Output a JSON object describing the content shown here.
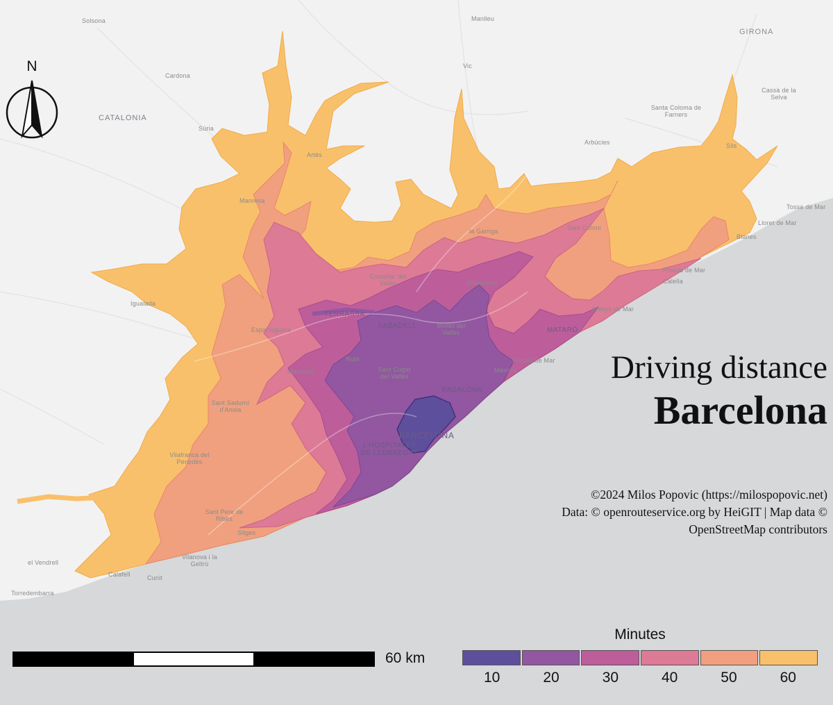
{
  "title": {
    "line1": "Driving distance",
    "line2": "Barcelona"
  },
  "credits": {
    "line1": "©2024 Milos Popovic (https://milospopovic.net)",
    "line2": "Data:  © openrouteservice.org by HeiGIT | Map data ©",
    "line3": "OpenStreetMap contributors"
  },
  "north_arrow": {
    "label": "N",
    "icon": "north-arrow-icon"
  },
  "scale_bar": {
    "label": "60 km"
  },
  "legend": {
    "title": "Minutes",
    "items": [
      {
        "label": "10",
        "color": "#5e4f9c"
      },
      {
        "label": "20",
        "color": "#9257a0"
      },
      {
        "label": "30",
        "color": "#bd5e9b"
      },
      {
        "label": "40",
        "color": "#dd7a95"
      },
      {
        "label": "50",
        "color": "#f0a07e"
      },
      {
        "label": "60",
        "color": "#f9c06c"
      }
    ]
  },
  "colors": {
    "land": "#f2f2f2",
    "sea": "#d6d8da",
    "isochrone_10": "#5e4f9c",
    "isochrone_20": "#9257a0",
    "isochrone_30": "#bd5e9b",
    "isochrone_40": "#dd7a95",
    "isochrone_50": "#f0a07e",
    "isochrone_60": "#f9c06c"
  },
  "places": [
    "Solsona",
    "Manlleu",
    "GIRONA",
    "Cardona",
    "Vic",
    "CATALONIA",
    "Cassà de la Selva",
    "Súria",
    "Santa Coloma de Farners",
    "Artés",
    "Arbúcies",
    "Sils",
    "Manresa",
    "Tossa de Mar",
    "la Garriga",
    "Sant Celoni",
    "Lloret de Mar",
    "Blanes",
    "Castellar del Vallès",
    "Granollers",
    "Pineda de Mar",
    "Calella",
    "Igualada",
    "TERRASSA",
    "SABADELL",
    "Mollet del Vallès",
    "Arenys de Mar",
    "Esparreguera",
    "MATARÓ",
    "Rubí",
    "Martorell",
    "Sant Cugat del Vallès",
    "Premià de Mar",
    "Masnou",
    "BADALONA",
    "Sant Sadurní d'Anoia",
    "BARCELONA",
    "L'HOSPITALET DE LLOBREGAT",
    "Vilafranca del Penedès",
    "Sant Pere de Ribes",
    "Sitges",
    "el Vendrell",
    "Vilanova i la Geltrú",
    "Calafell",
    "Cunit",
    "Torredembarra"
  ]
}
